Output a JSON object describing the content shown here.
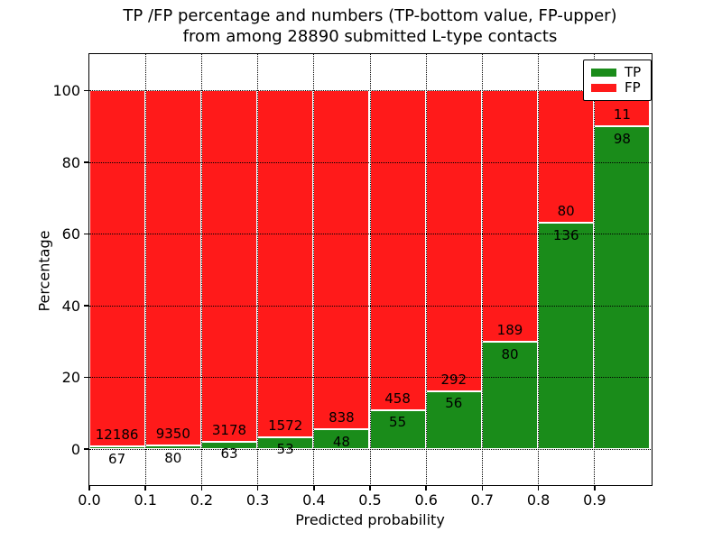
{
  "title": {
    "line1": "TP /FP percentage and numbers (TP-bottom value, FP-upper)",
    "line2": "from among 28890 submitted L-type contacts"
  },
  "x_axis": {
    "label": "Predicted probability",
    "ticks": [
      "0.0",
      "0.1",
      "0.2",
      "0.3",
      "0.4",
      "0.5",
      "0.6",
      "0.7",
      "0.8",
      "0.9"
    ]
  },
  "y_axis": {
    "label": "Percentage",
    "ticks": [
      "0",
      "20",
      "40",
      "60",
      "80",
      "100"
    ]
  },
  "legend": {
    "items": [
      {
        "label": "TP",
        "color": "#1A8C1A"
      },
      {
        "label": "FP",
        "color": "#FF1A1A"
      }
    ]
  },
  "colors": {
    "tp": "#1A8C1A",
    "fp": "#FF1A1A",
    "bar_edge": "#FFFFFF",
    "grid": "#000000",
    "background": "#FFFFFF",
    "text": "#000000"
  },
  "chart_data": {
    "type": "bar",
    "stacked": true,
    "normalized_to_percent": true,
    "title": "TP /FP percentage and numbers (TP-bottom value, FP-upper) from among 28890 submitted L-type contacts",
    "xlabel": "Predicted probability",
    "ylabel": "Percentage",
    "total_contacts": 28890,
    "bin_edges": [
      0.0,
      0.1,
      0.2,
      0.3,
      0.4,
      0.5,
      0.6,
      0.7,
      0.8,
      0.9,
      1.0
    ],
    "categories": [
      "0.0-0.1",
      "0.1-0.2",
      "0.2-0.3",
      "0.3-0.4",
      "0.4-0.5",
      "0.5-0.6",
      "0.6-0.7",
      "0.7-0.8",
      "0.8-0.9",
      "0.9-1.0"
    ],
    "series": [
      {
        "name": "TP",
        "color": "#1A8C1A",
        "counts": [
          67,
          80,
          63,
          53,
          48,
          55,
          56,
          80,
          136,
          98
        ]
      },
      {
        "name": "FP",
        "color": "#FF1A1A",
        "counts": [
          12186,
          9350,
          3178,
          1572,
          838,
          458,
          292,
          189,
          80,
          11
        ]
      }
    ],
    "tp_percent": [
      0.55,
      0.85,
      1.94,
      3.26,
      5.42,
      10.72,
      16.09,
      29.74,
      62.96,
      89.91
    ],
    "xlim": [
      0,
      1
    ],
    "ylim": [
      -10,
      110
    ],
    "grid": true,
    "grid_style": "dotted",
    "legend_position": "upper right"
  }
}
